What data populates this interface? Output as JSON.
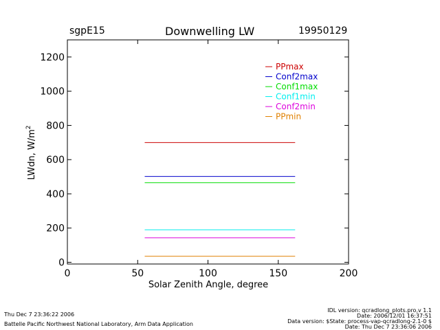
{
  "header": {
    "site": "sgpE15",
    "title": "Downwelling LW",
    "date": "19950129"
  },
  "footer": {
    "left_timestamp": "Thu Dec  7 23:36:22 2006",
    "left_lab": "Battelle Pacific Northwest National Laboratory, Arm Data Application",
    "right_lines": [
      "IDL version: qcradlong_plots.pro,v 1.1",
      "Date: 2006/12/01 16:37:51",
      "Data version: $State: process-vap-qcradlong-2.1-0 $",
      "Date: Thu Dec  7 23:36:06 2006"
    ]
  },
  "chart_data": {
    "type": "line",
    "title": "Downwelling LW",
    "xlabel": "Solar Zenith Angle, degree",
    "ylabel_main": "LWdn, W/m",
    "ylabel_superscript": "2",
    "xlim": [
      0,
      200
    ],
    "ylim": [
      -10,
      1300
    ],
    "xticks": [
      0,
      50,
      100,
      150,
      200
    ],
    "yticks": [
      0,
      200,
      400,
      600,
      800,
      1000,
      1200
    ],
    "legend_position": "top-right",
    "series": [
      {
        "name": "PPmax",
        "color": "#cc0000",
        "x": [
          55,
          162
        ],
        "y": [
          700,
          700
        ]
      },
      {
        "name": "Conf2max",
        "color": "#0000cc",
        "x": [
          55,
          162
        ],
        "y": [
          502,
          502
        ]
      },
      {
        "name": "Conf1max",
        "color": "#00dd00",
        "x": [
          55,
          162
        ],
        "y": [
          465,
          465
        ]
      },
      {
        "name": "Conf1min",
        "color": "#00eeee",
        "x": [
          55,
          162
        ],
        "y": [
          190,
          190
        ]
      },
      {
        "name": "Conf2min",
        "color": "#dd00dd",
        "x": [
          55,
          162
        ],
        "y": [
          143,
          143
        ]
      },
      {
        "name": "PPmin",
        "color": "#e08000",
        "x": [
          55,
          162
        ],
        "y": [
          35,
          35
        ]
      }
    ]
  }
}
